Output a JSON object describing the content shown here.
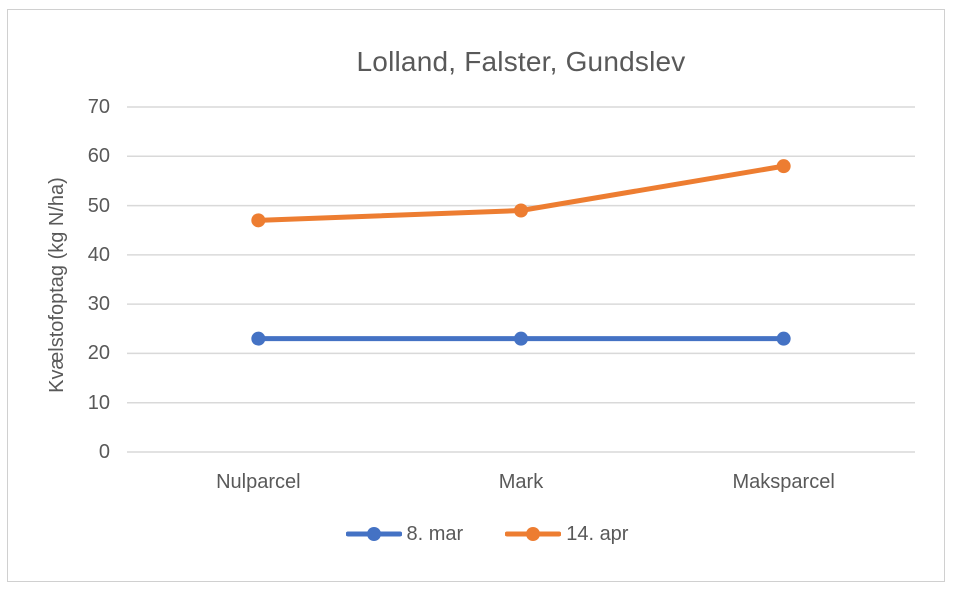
{
  "title": "Lolland, Falster, Gundslev",
  "chart_data": {
    "type": "line",
    "title": "Lolland, Falster, Gundslev",
    "categories": [
      "Nulparcel",
      "Mark",
      "Maksparcel"
    ],
    "series": [
      {
        "name": "8. mar",
        "color": "#4472C4",
        "values": [
          23,
          23,
          23
        ]
      },
      {
        "name": "14. apr",
        "color": "#ED7D31",
        "values": [
          47,
          49,
          58
        ]
      }
    ],
    "xlabel": "",
    "ylabel": "Kvælstofoptag (kg N/ha)",
    "ylim": [
      0,
      70
    ],
    "yticks": [
      0,
      10,
      20,
      30,
      40,
      50,
      60,
      70
    ],
    "grid": true,
    "legend_position": "bottom"
  },
  "colors": {
    "series_blue": "#4472C4",
    "series_orange": "#ED7D31",
    "text": "#595959",
    "gridline": "#D9D9D9",
    "frame_border": "#D0D0D0",
    "background": "#FFFFFF"
  }
}
